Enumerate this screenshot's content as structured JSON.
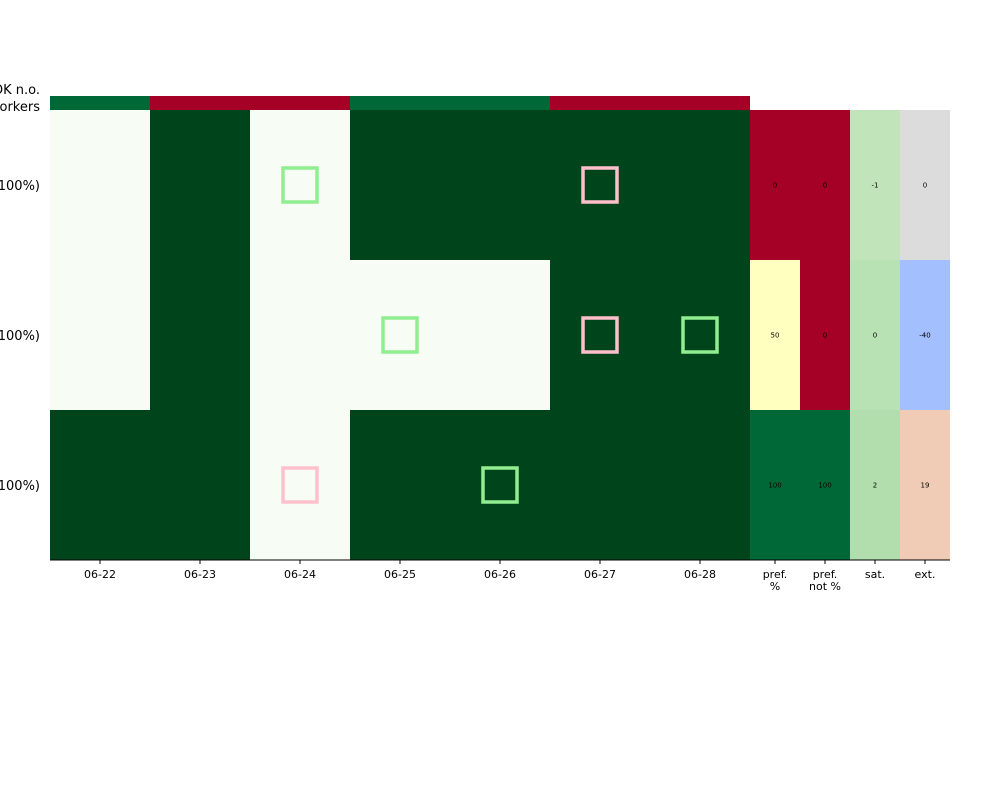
{
  "chart_data": {
    "type": "heatmap",
    "ok_header_lines": [
      "OK n.o.",
      "workers"
    ],
    "rows": [
      {
        "label": "(100%)"
      },
      {
        "label": "(100%)"
      },
      {
        "label": "(100%)"
      }
    ],
    "dates": [
      "06-22",
      "06-23",
      "06-24",
      "06-25",
      "06-26",
      "06-27",
      "06-28"
    ],
    "summary_columns": [
      {
        "label": [
          "pref.",
          "%"
        ]
      },
      {
        "label": [
          "pref.",
          "not %"
        ]
      },
      {
        "label": [
          "sat."
        ]
      },
      {
        "label": [
          "ext."
        ]
      }
    ],
    "ok_status": [
      "ok",
      "not_ok",
      "not_ok",
      "ok",
      "ok",
      "not_ok",
      "not_ok"
    ],
    "shifts": [
      [
        0,
        1,
        0,
        1,
        1,
        1,
        1
      ],
      [
        0,
        1,
        0,
        0,
        0,
        1,
        1
      ],
      [
        1,
        1,
        0,
        1,
        1,
        1,
        1
      ]
    ],
    "markers": [
      {
        "row": 0,
        "col": 2,
        "kind": "preferred"
      },
      {
        "row": 0,
        "col": 5,
        "kind": "not_preferred"
      },
      {
        "row": 1,
        "col": 3,
        "kind": "preferred"
      },
      {
        "row": 1,
        "col": 5,
        "kind": "not_preferred"
      },
      {
        "row": 1,
        "col": 6,
        "kind": "preferred"
      },
      {
        "row": 2,
        "col": 2,
        "kind": "not_preferred"
      },
      {
        "row": 2,
        "col": 4,
        "kind": "preferred"
      }
    ],
    "summary_values": [
      [
        "0",
        "0",
        "-1",
        "0"
      ],
      [
        "50",
        "0",
        "0",
        "-40"
      ],
      [
        "100",
        "100",
        "2",
        "19"
      ]
    ],
    "summary_colors": [
      [
        "#a50026",
        "#a50026",
        "#c2e4bb",
        "#dcdcdc"
      ],
      [
        "#ffffbf",
        "#a50026",
        "#b9e2b4",
        "#a3bffe"
      ],
      [
        "#006837",
        "#006837",
        "#b1deac",
        "#f0cbb6"
      ]
    ],
    "colors": {
      "on_shift": "#00441b",
      "off_shift": "#f7fcf5",
      "ok_true": "#006837",
      "ok_false": "#a50026",
      "marker_preferred": "#90ee90",
      "marker_not_preferred": "#ffc0cb"
    }
  }
}
